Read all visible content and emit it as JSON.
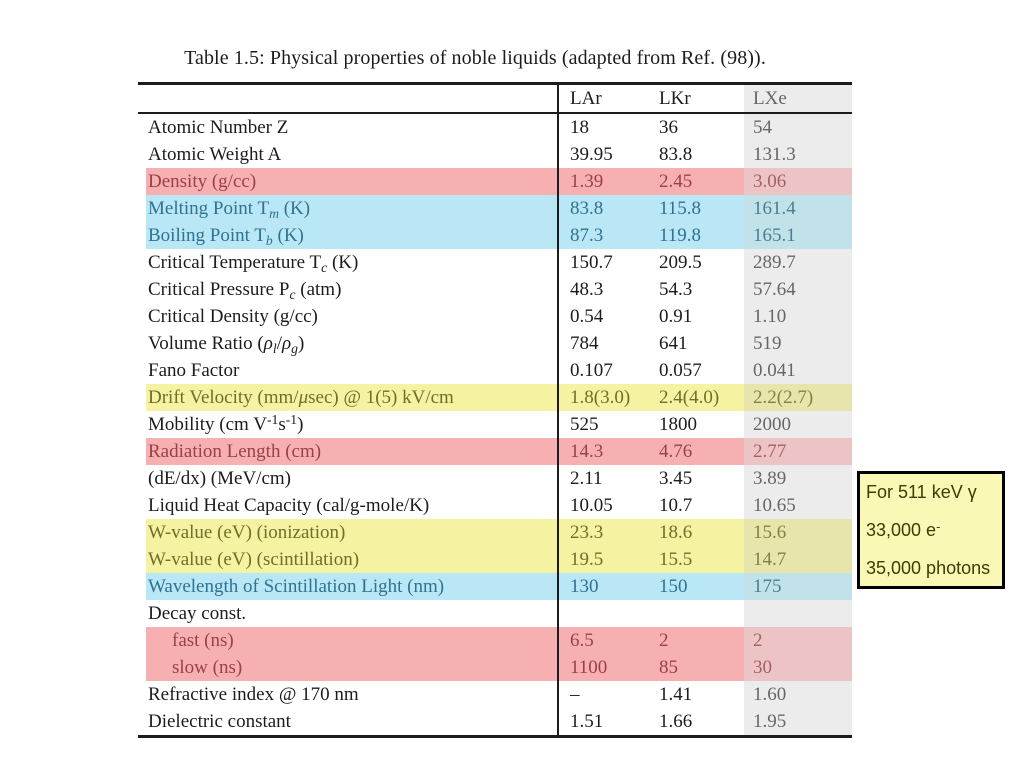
{
  "caption": "Table 1.5: Physical properties of noble liquids (adapted from Ref. (98)).",
  "table": {
    "columns": [
      "LAr",
      "LKr",
      "LXe"
    ],
    "rows": [
      {
        "label": "Atomic Number Z",
        "values": [
          "18",
          "36",
          "54"
        ],
        "highlight": null,
        "indent": false
      },
      {
        "label": "Atomic Weight A",
        "values": [
          "39.95",
          "83.8",
          "131.3"
        ],
        "highlight": null,
        "indent": false
      },
      {
        "label": "Density (g/cc)",
        "values": [
          "1.39",
          "2.45",
          "3.06"
        ],
        "highlight": "pink",
        "indent": false
      },
      {
        "label": "Melting Point T_{m} (K)",
        "values": [
          "83.8",
          "115.8",
          "161.4"
        ],
        "highlight": "cyan",
        "indent": false
      },
      {
        "label": "Boiling Point T_{b} (K)",
        "values": [
          "87.3",
          "119.8",
          "165.1"
        ],
        "highlight": "cyan",
        "indent": false
      },
      {
        "label": "Critical Temperature T_{c} (K)",
        "values": [
          "150.7",
          "209.5",
          "289.7"
        ],
        "highlight": null,
        "indent": false
      },
      {
        "label": "Critical Pressure P_{c} (atm)",
        "values": [
          "48.3",
          "54.3",
          "57.64"
        ],
        "highlight": null,
        "indent": false
      },
      {
        "label": "Critical Density (g/cc)",
        "values": [
          "0.54",
          "0.91",
          "1.10"
        ],
        "highlight": null,
        "indent": false
      },
      {
        "label": "Volume Ratio (~{ρ}_{l}/~{ρ}_{g})",
        "values": [
          "784",
          "641",
          "519"
        ],
        "highlight": null,
        "indent": false
      },
      {
        "label": "Fano Factor",
        "values": [
          "0.107",
          "0.057",
          "0.041"
        ],
        "highlight": null,
        "indent": false
      },
      {
        "label": "Drift Velocity (mm/~{μ}sec) @ 1(5) kV/cm",
        "values": [
          "1.8(3.0)",
          "2.4(4.0)",
          "2.2(2.7)"
        ],
        "highlight": "yellow",
        "indent": false
      },
      {
        "label": "Mobility (cm V^{-1}s^{-1})",
        "values": [
          "525",
          "1800",
          "2000"
        ],
        "highlight": null,
        "indent": false
      },
      {
        "label": "Radiation Length (cm)",
        "values": [
          "14.3",
          "4.76",
          "2.77"
        ],
        "highlight": "pink",
        "indent": false
      },
      {
        "label": "(dE/dx) (MeV/cm)",
        "values": [
          "2.11",
          "3.45",
          "3.89"
        ],
        "highlight": null,
        "indent": false
      },
      {
        "label": "Liquid Heat Capacity (cal/g-mole/K)",
        "values": [
          "10.05",
          "10.7",
          "10.65"
        ],
        "highlight": null,
        "indent": false
      },
      {
        "label": "W-value (eV) (ionization)",
        "values": [
          "23.3",
          "18.6",
          "15.6"
        ],
        "highlight": "yellow",
        "indent": false
      },
      {
        "label": "W-value (eV) (scintillation)",
        "values": [
          "19.5",
          "15.5",
          "14.7"
        ],
        "highlight": "yellow",
        "indent": false
      },
      {
        "label": "Wavelength of Scintillation Light (nm)",
        "values": [
          "130",
          "150",
          "175"
        ],
        "highlight": "cyan",
        "indent": false
      },
      {
        "label": "Decay const.",
        "values": [
          "",
          "",
          ""
        ],
        "highlight": null,
        "indent": false
      },
      {
        "label": "fast (ns)",
        "values": [
          "6.5",
          "2",
          "2"
        ],
        "highlight": "pink",
        "indent": true
      },
      {
        "label": "slow (ns)",
        "values": [
          "1100",
          "85",
          "30"
        ],
        "highlight": "pink",
        "indent": true
      },
      {
        "label": "Refractive index @ 170 nm",
        "values": [
          "–",
          "1.41",
          "1.60"
        ],
        "highlight": null,
        "indent": false
      },
      {
        "label": "Dielectric constant",
        "values": [
          "1.51",
          "1.66",
          "1.95"
        ],
        "highlight": null,
        "indent": false
      }
    ]
  },
  "callout": {
    "lines": [
      "For 511 keV γ",
      "33,000 e^{-}",
      "35,000 photons"
    ]
  },
  "colors": {
    "text": "#1c1c1e",
    "rule": "#1c1c1c",
    "pink_bg": "#f7b0b2",
    "pink_text": "#9c4045",
    "pink_lxe_bg": "#edc4c5",
    "pink_lxe_text": "#a85f62",
    "cyan_bg": "#bae7f6",
    "cyan_text": "#2e7391",
    "cyan_lxe_bg": "#c2e2ea",
    "cyan_lxe_text": "#4a7f93",
    "yellow_bg": "#f5f2a2",
    "yellow_text": "#6f6f2a",
    "yellow_lxe_bg": "#e8e5ac",
    "yellow_lxe_text": "#82823f",
    "lxe_bg": "#ececec",
    "lxe_text": "#666666",
    "callout_bg": "#f9f9b5",
    "callout_text": "#3c3c04",
    "callout_border": "#000000"
  }
}
